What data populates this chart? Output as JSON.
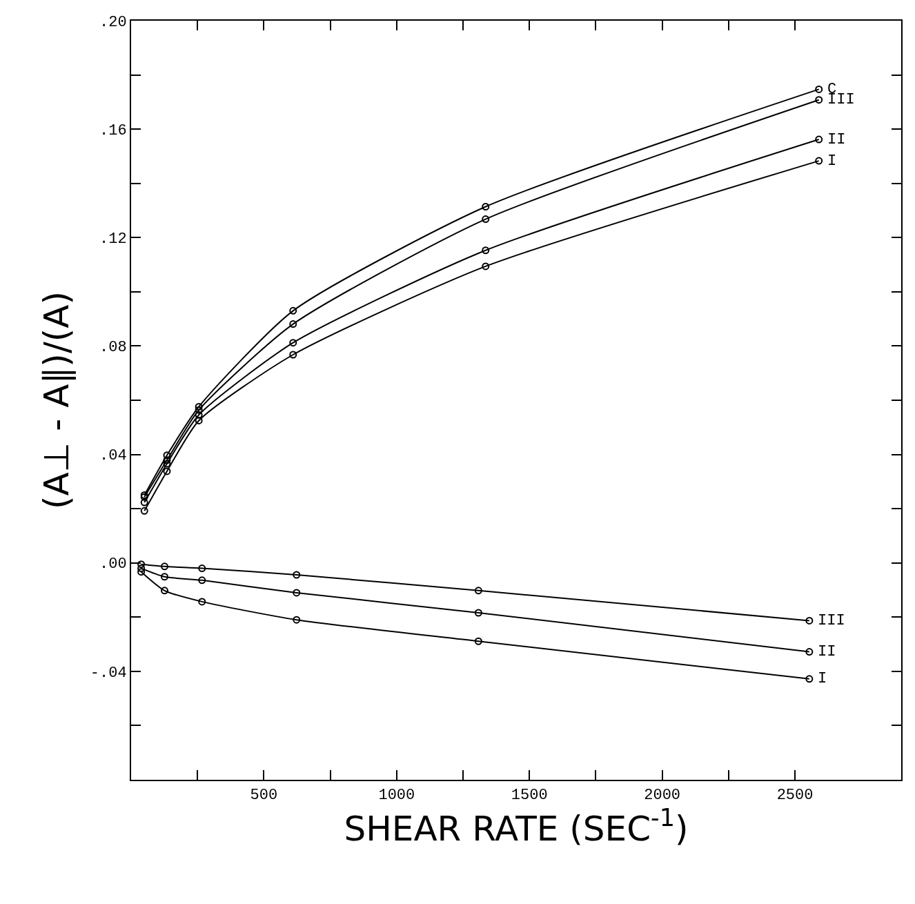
{
  "chart_data": {
    "type": "line",
    "xlabel": "SHEAR RATE (SEC$^{-1}$)",
    "ylabel": "(A⊥ - A∥)/(A)",
    "xlim": [
      0,
      2900
    ],
    "ylim": [
      -0.08,
      0.2
    ],
    "xticks": [
      {
        "value": 250,
        "label": null
      },
      500,
      {
        "value": 750,
        "label": null
      },
      1000,
      {
        "value": 1250,
        "label": null
      },
      1500,
      {
        "value": 1750,
        "label": null
      },
      2000,
      {
        "value": 2250,
        "label": null
      },
      2500
    ],
    "yticks": [
      {
        "value": -0.06,
        "label": null
      },
      {
        "value": -0.04,
        "label": "-.04"
      },
      {
        "value": -0.02,
        "label": null
      },
      {
        "value": 0,
        "label": ".00"
      },
      {
        "value": 0.02,
        "label": null
      },
      {
        "value": 0.04,
        "label": ".04"
      },
      {
        "value": 0.06,
        "label": null
      },
      {
        "value": 0.08,
        "label": ".08"
      },
      {
        "value": 0.1,
        "label": null
      },
      {
        "value": 0.12,
        "label": ".12"
      },
      {
        "value": 0.14,
        "label": null
      },
      {
        "value": 0.16,
        "label": ".16"
      },
      {
        "value": 0.18,
        "label": null
      },
      {
        "value": 0.2,
        "label": ".20"
      }
    ],
    "marker": "circle",
    "line_style": "solid",
    "legend": false,
    "series": [
      {
        "name": "C",
        "color": "#000000",
        "x": [
          50,
          135,
          255,
          610,
          1335,
          2590
        ],
        "values": [
          0.025,
          0.0397,
          0.0576,
          0.093,
          0.1314,
          0.1747
        ]
      },
      {
        "name": "III",
        "color": "#000000",
        "x": [
          50,
          135,
          255,
          610,
          1335,
          2590
        ],
        "values": [
          0.0243,
          0.0379,
          0.0564,
          0.0881,
          0.1268,
          0.1708
        ]
      },
      {
        "name": "II",
        "color": "#000000",
        "x": [
          50,
          135,
          255,
          610,
          1335,
          2590
        ],
        "values": [
          0.0223,
          0.0366,
          0.0546,
          0.0812,
          0.1153,
          0.1562
        ]
      },
      {
        "name": "I",
        "color": "#000000",
        "x": [
          50,
          135,
          255,
          610,
          1335,
          2590
        ],
        "values": [
          0.0192,
          0.0338,
          0.0525,
          0.0768,
          0.1094,
          0.1483
        ]
      },
      {
        "name": "III",
        "color": "#000000",
        "x": [
          38,
          126,
          267,
          623,
          1308,
          2554
        ],
        "values": [
          -0.0005,
          -0.0013,
          -0.002,
          -0.0044,
          -0.0102,
          -0.0213
        ]
      },
      {
        "name": "II",
        "color": "#000000",
        "x": [
          38,
          126,
          267,
          623,
          1308,
          2554
        ],
        "values": [
          -0.002,
          -0.0051,
          -0.0064,
          -0.011,
          -0.0184,
          -0.0328
        ]
      },
      {
        "name": "I",
        "color": "#000000",
        "x": [
          38,
          126,
          267,
          623,
          1308,
          2554
        ],
        "values": [
          -0.0033,
          -0.0102,
          -0.0143,
          -0.021,
          -0.0289,
          -0.0428
        ]
      }
    ]
  }
}
